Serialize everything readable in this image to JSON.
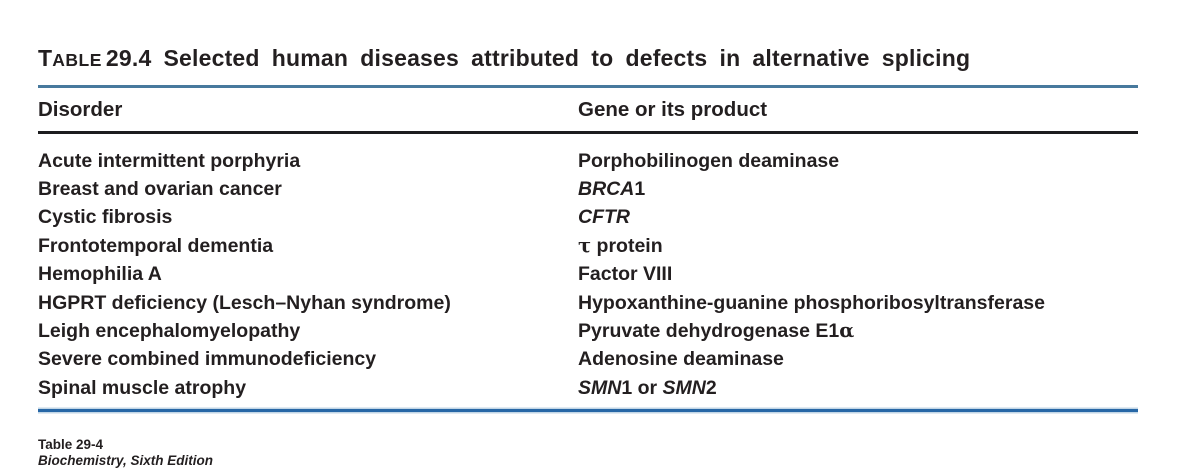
{
  "title": {
    "label_initial": "T",
    "label_rest": "ABLE",
    "number": "29.4",
    "text": "Selected human diseases attributed to defects in alternative splicing"
  },
  "table": {
    "headers": [
      "Disorder",
      "Gene or its product"
    ],
    "rows": [
      {
        "disorder": "Acute intermittent porphyria",
        "gene": [
          {
            "text": "Porphobilinogen deaminase"
          }
        ]
      },
      {
        "disorder": "Breast and ovarian cancer",
        "gene": [
          {
            "text": "BRCA",
            "italic": true
          },
          {
            "text": "1"
          }
        ]
      },
      {
        "disorder": "Cystic fibrosis",
        "gene": [
          {
            "text": "CFTR",
            "italic": true
          }
        ]
      },
      {
        "disorder": "Frontotemporal dementia",
        "gene": [
          {
            "text": "τ",
            "greek": true
          },
          {
            "text": " protein"
          }
        ]
      },
      {
        "disorder": "Hemophilia A",
        "gene": [
          {
            "text": "Factor VIII"
          }
        ]
      },
      {
        "disorder": "HGPRT deficiency (Lesch–Nyhan syndrome)",
        "gene": [
          {
            "text": "Hypoxanthine-guanine phosphoribosyltransferase"
          }
        ]
      },
      {
        "disorder": "Leigh encephalomyelopathy",
        "gene": [
          {
            "text": "Pyruvate dehydrogenase E1"
          },
          {
            "text": "α",
            "greek": true
          }
        ]
      },
      {
        "disorder": "Severe combined immunodeficiency",
        "gene": [
          {
            "text": "Adenosine deaminase"
          }
        ]
      },
      {
        "disorder": "Spinal muscle atrophy",
        "gene": [
          {
            "text": "SMN",
            "italic": true
          },
          {
            "text": "1 or "
          },
          {
            "text": "SMN",
            "italic": true
          },
          {
            "text": "2"
          }
        ]
      }
    ]
  },
  "footer": {
    "line1": "Table 29-4",
    "line2": "Biochemistry, Sixth Edition"
  },
  "colors": {
    "text": "#231f20",
    "rule_top": "#47799d",
    "rule_header": "#1d1d1f",
    "rule_bottom": "#2767a6"
  }
}
